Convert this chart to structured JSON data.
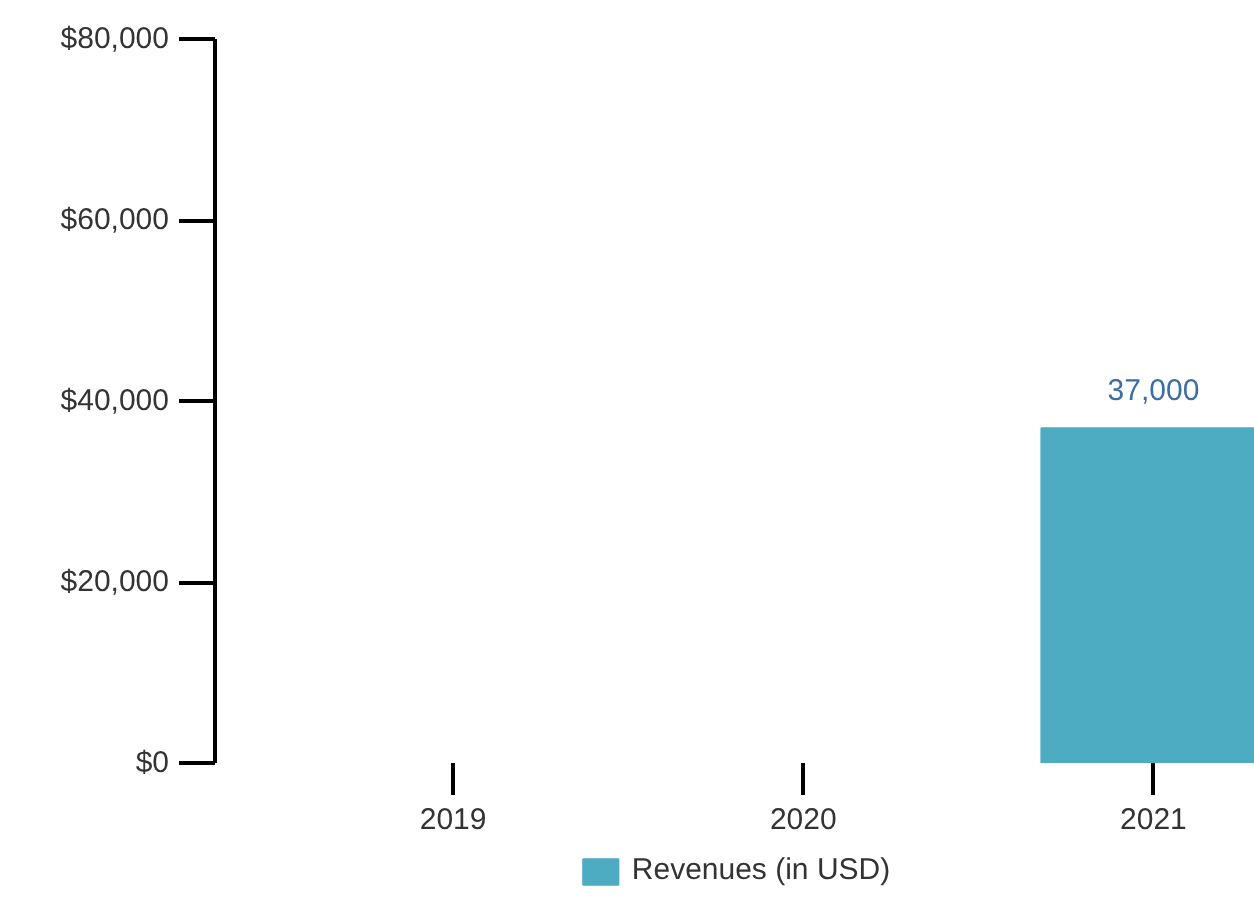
{
  "chart_data": {
    "type": "bar",
    "categories": [
      "2019",
      "2020",
      "2021"
    ],
    "series": [
      {
        "name": "Revenues (in USD)",
        "color": "#4dabc2",
        "values": [
          null,
          null,
          37000
        ],
        "value_labels": [
          null,
          null,
          "37,000"
        ]
      }
    ],
    "ylim": [
      0,
      80000
    ],
    "yticks": [
      {
        "value": 0,
        "label": "$0"
      },
      {
        "value": 20000,
        "label": "$20,000"
      },
      {
        "value": 40000,
        "label": "$40,000"
      },
      {
        "value": 60000,
        "label": "$60,000"
      },
      {
        "value": 80000,
        "label": "$80,000"
      }
    ],
    "grid": false,
    "legend": "bottom"
  }
}
